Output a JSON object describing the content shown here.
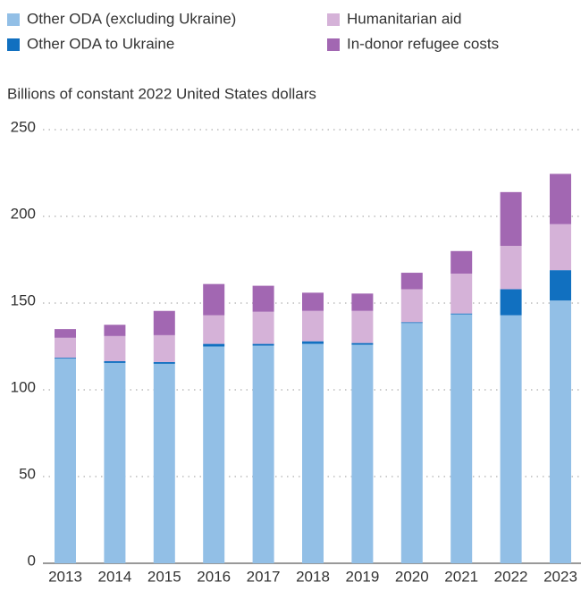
{
  "chart_data": {
    "type": "stacked_bar",
    "y_axis_label": "Billions of constant 2022 United States dollars",
    "categories": [
      "2013",
      "2014",
      "2015",
      "2016",
      "2017",
      "2018",
      "2019",
      "2020",
      "2021",
      "2022",
      "2023"
    ],
    "series": [
      {
        "name": "Other ODA (excluding Ukraine)",
        "color": "#92bfe6",
        "values": [
          118,
          115.5,
          115,
          125,
          125.5,
          126.5,
          126,
          138.5,
          143.5,
          143,
          151.5
        ]
      },
      {
        "name": "Other ODA to Ukraine",
        "color": "#1170c0",
        "values": [
          0.5,
          1,
          1,
          1.5,
          1,
          1.5,
          1,
          0.5,
          0.5,
          15,
          17.5
        ]
      },
      {
        "name": "Humanitarian aid",
        "color": "#d5b2d8",
        "values": [
          11.5,
          14.5,
          15.5,
          16.5,
          18.5,
          17.5,
          18.5,
          19,
          23,
          25,
          26.5
        ]
      },
      {
        "name": "In-donor refugee costs",
        "color": "#a267b2",
        "values": [
          5,
          6.5,
          14,
          18,
          15,
          10.5,
          10,
          9.5,
          13,
          31,
          29
        ]
      }
    ],
    "ylim": [
      0,
      250
    ],
    "yticks": [
      0,
      50,
      100,
      150,
      200,
      250
    ],
    "grid": true
  }
}
